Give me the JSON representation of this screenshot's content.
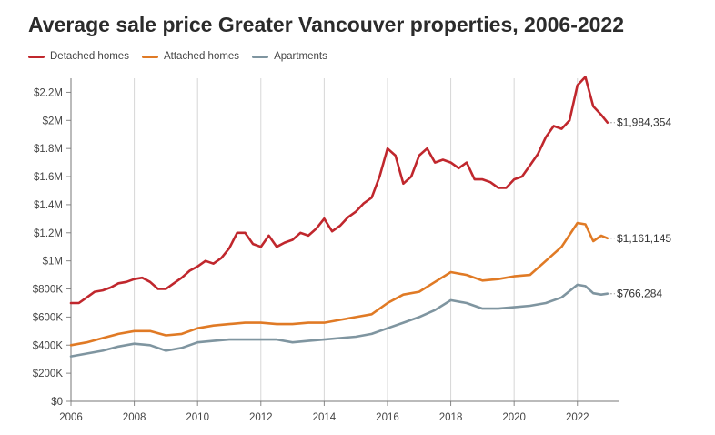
{
  "chart_data": {
    "type": "line",
    "title": "Average sale price Greater Vancouver properties, 2006-2022",
    "xlabel": "",
    "ylabel": "",
    "xlim": [
      2006,
      2023.3
    ],
    "ylim": [
      0,
      2300000
    ],
    "yticks": [
      {
        "value": 0,
        "label": "$0"
      },
      {
        "value": 200000,
        "label": "$200K"
      },
      {
        "value": 400000,
        "label": "$400K"
      },
      {
        "value": 600000,
        "label": "$600K"
      },
      {
        "value": 800000,
        "label": "$800K"
      },
      {
        "value": 1000000,
        "label": "$1M"
      },
      {
        "value": 1200000,
        "label": "$1.2M"
      },
      {
        "value": 1400000,
        "label": "$1.4M"
      },
      {
        "value": 1600000,
        "label": "$1.6M"
      },
      {
        "value": 1800000,
        "label": "$1.8M"
      },
      {
        "value": 2000000,
        "label": "$2M"
      },
      {
        "value": 2200000,
        "label": "$2.2M"
      }
    ],
    "xticks": [
      {
        "value": 2006,
        "label": "2006"
      },
      {
        "value": 2008,
        "label": "2008"
      },
      {
        "value": 2010,
        "label": "2010"
      },
      {
        "value": 2012,
        "label": "2012"
      },
      {
        "value": 2014,
        "label": "2014"
      },
      {
        "value": 2016,
        "label": "2016"
      },
      {
        "value": 2018,
        "label": "2018"
      },
      {
        "value": 2020,
        "label": "2020"
      },
      {
        "value": 2022,
        "label": "2022"
      }
    ],
    "grid": "vertical",
    "legend": "top-left",
    "series": [
      {
        "name": "Detached homes",
        "color": "#c0272d",
        "end_label": "$1,984,354",
        "points": [
          [
            2006.0,
            700000
          ],
          [
            2006.25,
            700000
          ],
          [
            2006.5,
            740000
          ],
          [
            2006.75,
            780000
          ],
          [
            2007.0,
            790000
          ],
          [
            2007.25,
            810000
          ],
          [
            2007.5,
            840000
          ],
          [
            2007.75,
            850000
          ],
          [
            2008.0,
            870000
          ],
          [
            2008.25,
            880000
          ],
          [
            2008.5,
            850000
          ],
          [
            2008.75,
            800000
          ],
          [
            2009.0,
            800000
          ],
          [
            2009.25,
            840000
          ],
          [
            2009.5,
            880000
          ],
          [
            2009.75,
            930000
          ],
          [
            2010.0,
            960000
          ],
          [
            2010.25,
            1000000
          ],
          [
            2010.5,
            980000
          ],
          [
            2010.75,
            1020000
          ],
          [
            2011.0,
            1090000
          ],
          [
            2011.25,
            1200000
          ],
          [
            2011.5,
            1200000
          ],
          [
            2011.75,
            1120000
          ],
          [
            2012.0,
            1100000
          ],
          [
            2012.25,
            1180000
          ],
          [
            2012.5,
            1100000
          ],
          [
            2012.75,
            1130000
          ],
          [
            2013.0,
            1150000
          ],
          [
            2013.25,
            1200000
          ],
          [
            2013.5,
            1180000
          ],
          [
            2013.75,
            1230000
          ],
          [
            2014.0,
            1300000
          ],
          [
            2014.25,
            1210000
          ],
          [
            2014.5,
            1250000
          ],
          [
            2014.75,
            1310000
          ],
          [
            2015.0,
            1350000
          ],
          [
            2015.25,
            1410000
          ],
          [
            2015.5,
            1450000
          ],
          [
            2015.75,
            1600000
          ],
          [
            2016.0,
            1800000
          ],
          [
            2016.25,
            1750000
          ],
          [
            2016.5,
            1550000
          ],
          [
            2016.75,
            1600000
          ],
          [
            2017.0,
            1750000
          ],
          [
            2017.25,
            1800000
          ],
          [
            2017.5,
            1700000
          ],
          [
            2017.75,
            1720000
          ],
          [
            2018.0,
            1700000
          ],
          [
            2018.25,
            1660000
          ],
          [
            2018.5,
            1700000
          ],
          [
            2018.75,
            1580000
          ],
          [
            2019.0,
            1580000
          ],
          [
            2019.25,
            1560000
          ],
          [
            2019.5,
            1520000
          ],
          [
            2019.75,
            1520000
          ],
          [
            2020.0,
            1580000
          ],
          [
            2020.25,
            1600000
          ],
          [
            2020.5,
            1680000
          ],
          [
            2020.75,
            1760000
          ],
          [
            2021.0,
            1880000
          ],
          [
            2021.25,
            1960000
          ],
          [
            2021.5,
            1940000
          ],
          [
            2021.75,
            2000000
          ],
          [
            2022.0,
            2250000
          ],
          [
            2022.25,
            2310000
          ],
          [
            2022.5,
            2100000
          ],
          [
            2022.75,
            2040000
          ],
          [
            2022.95,
            1984354
          ]
        ]
      },
      {
        "name": "Attached homes",
        "color": "#e07a25",
        "end_label": "$1,161,145",
        "points": [
          [
            2006.0,
            400000
          ],
          [
            2006.5,
            420000
          ],
          [
            2007.0,
            450000
          ],
          [
            2007.5,
            480000
          ],
          [
            2008.0,
            500000
          ],
          [
            2008.5,
            500000
          ],
          [
            2009.0,
            470000
          ],
          [
            2009.5,
            480000
          ],
          [
            2010.0,
            520000
          ],
          [
            2010.5,
            540000
          ],
          [
            2011.0,
            550000
          ],
          [
            2011.5,
            560000
          ],
          [
            2012.0,
            560000
          ],
          [
            2012.5,
            550000
          ],
          [
            2013.0,
            550000
          ],
          [
            2013.5,
            560000
          ],
          [
            2014.0,
            560000
          ],
          [
            2014.5,
            580000
          ],
          [
            2015.0,
            600000
          ],
          [
            2015.5,
            620000
          ],
          [
            2016.0,
            700000
          ],
          [
            2016.5,
            760000
          ],
          [
            2017.0,
            780000
          ],
          [
            2017.5,
            850000
          ],
          [
            2018.0,
            920000
          ],
          [
            2018.5,
            900000
          ],
          [
            2019.0,
            860000
          ],
          [
            2019.5,
            870000
          ],
          [
            2020.0,
            890000
          ],
          [
            2020.5,
            900000
          ],
          [
            2021.0,
            1000000
          ],
          [
            2021.5,
            1100000
          ],
          [
            2022.0,
            1270000
          ],
          [
            2022.25,
            1260000
          ],
          [
            2022.5,
            1140000
          ],
          [
            2022.75,
            1180000
          ],
          [
            2022.95,
            1161145
          ]
        ]
      },
      {
        "name": "Apartments",
        "color": "#7f95a0",
        "end_label": "$766,284",
        "points": [
          [
            2006.0,
            320000
          ],
          [
            2006.5,
            340000
          ],
          [
            2007.0,
            360000
          ],
          [
            2007.5,
            390000
          ],
          [
            2008.0,
            410000
          ],
          [
            2008.5,
            400000
          ],
          [
            2009.0,
            360000
          ],
          [
            2009.5,
            380000
          ],
          [
            2010.0,
            420000
          ],
          [
            2010.5,
            430000
          ],
          [
            2011.0,
            440000
          ],
          [
            2011.5,
            440000
          ],
          [
            2012.0,
            440000
          ],
          [
            2012.5,
            440000
          ],
          [
            2013.0,
            420000
          ],
          [
            2013.5,
            430000
          ],
          [
            2014.0,
            440000
          ],
          [
            2014.5,
            450000
          ],
          [
            2015.0,
            460000
          ],
          [
            2015.5,
            480000
          ],
          [
            2016.0,
            520000
          ],
          [
            2016.5,
            560000
          ],
          [
            2017.0,
            600000
          ],
          [
            2017.5,
            650000
          ],
          [
            2018.0,
            720000
          ],
          [
            2018.5,
            700000
          ],
          [
            2019.0,
            660000
          ],
          [
            2019.5,
            660000
          ],
          [
            2020.0,
            670000
          ],
          [
            2020.5,
            680000
          ],
          [
            2021.0,
            700000
          ],
          [
            2021.5,
            740000
          ],
          [
            2022.0,
            830000
          ],
          [
            2022.25,
            820000
          ],
          [
            2022.5,
            770000
          ],
          [
            2022.75,
            760000
          ],
          [
            2022.95,
            766284
          ]
        ]
      }
    ]
  }
}
